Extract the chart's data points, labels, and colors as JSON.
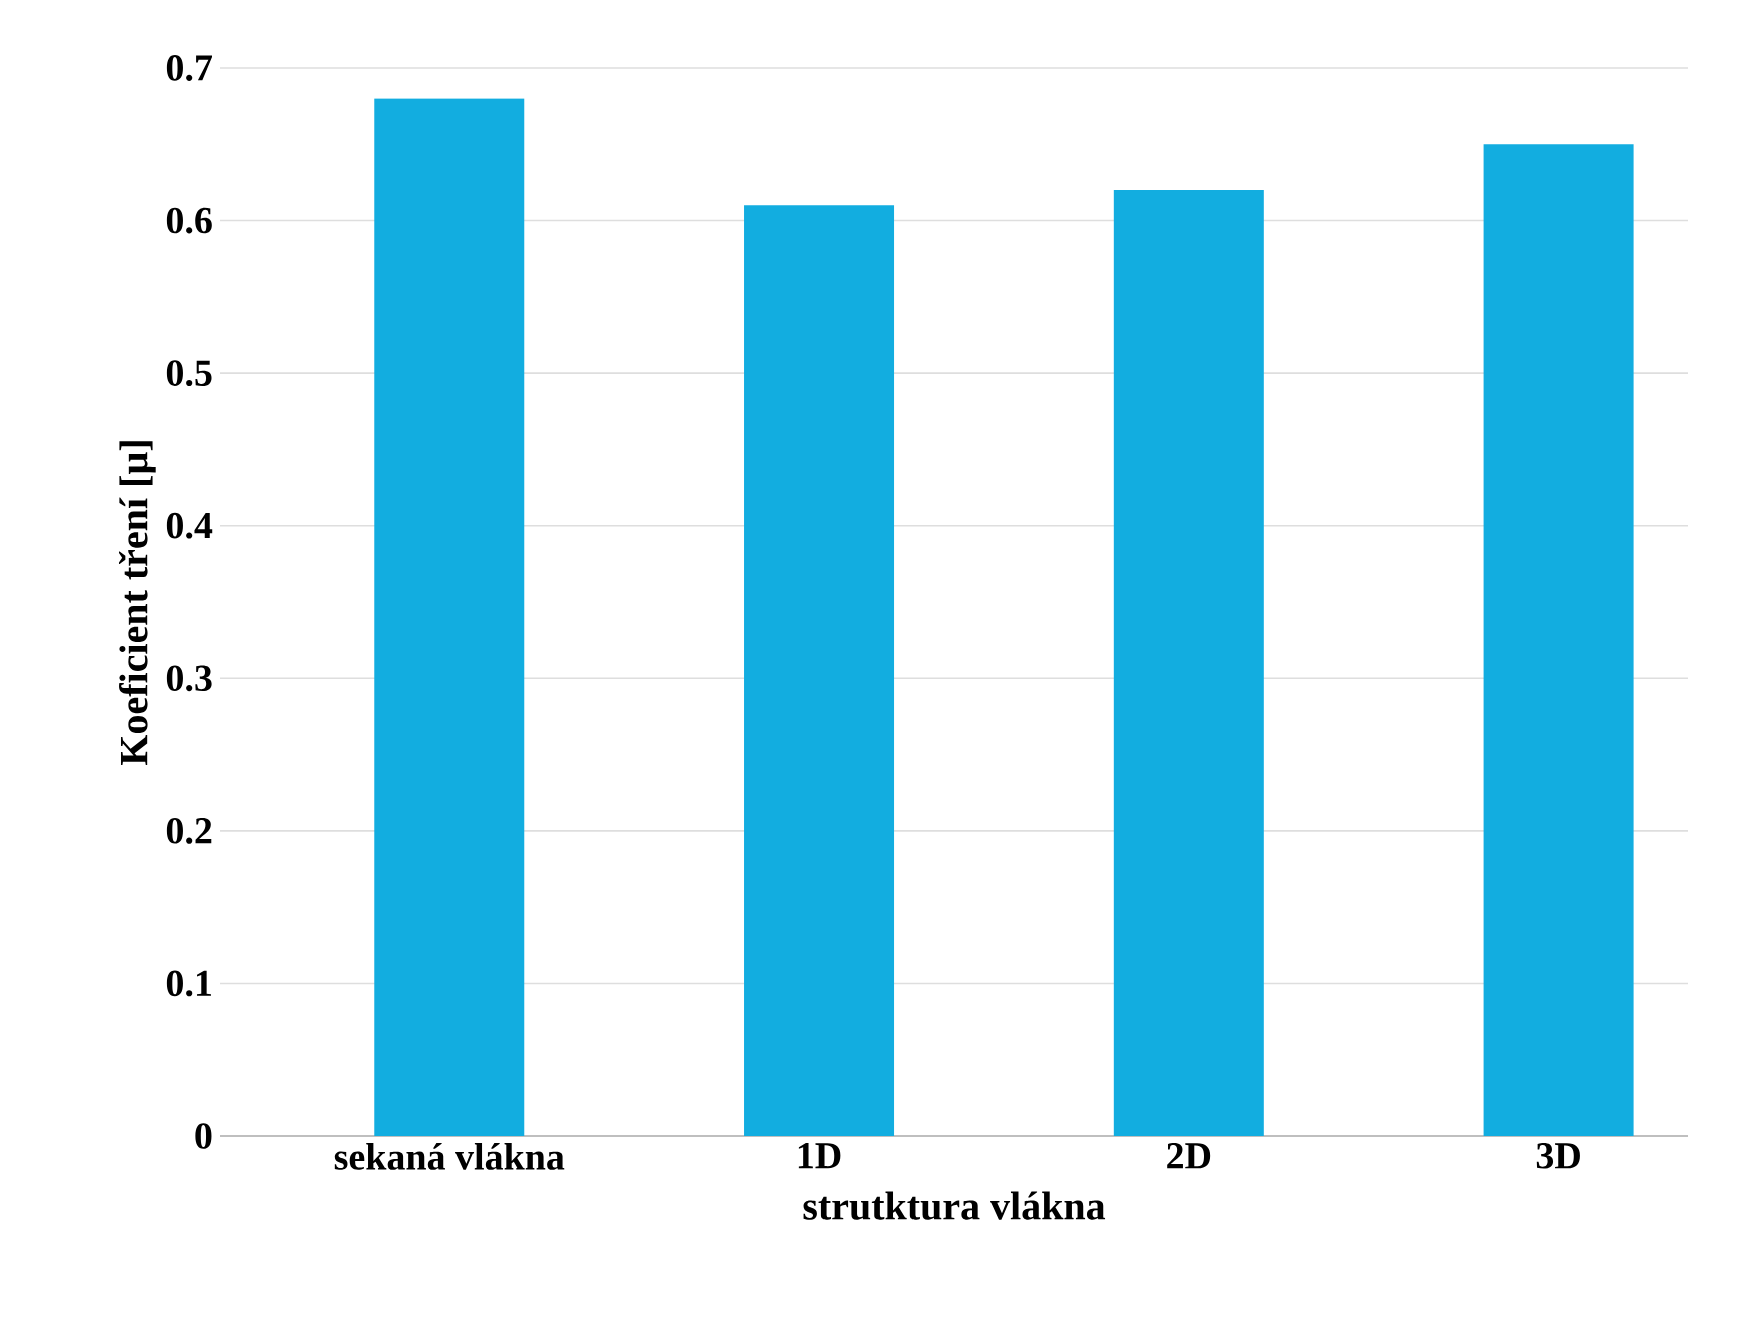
{
  "chart_data": {
    "type": "bar",
    "xlabel": "strutktura vlákna",
    "ylabel": "Koeficient tření [µ]",
    "categories": [
      "sekaná vlákna",
      "1D",
      "2D",
      "3D"
    ],
    "values": [
      0.68,
      0.61,
      0.62,
      0.65
    ],
    "color": "#12ade0",
    "ylim": [
      0,
      0.7
    ],
    "yticks": [
      0,
      0.1,
      0.2,
      0.3,
      0.4,
      0.5,
      0.6,
      0.7
    ],
    "grid": "y"
  }
}
